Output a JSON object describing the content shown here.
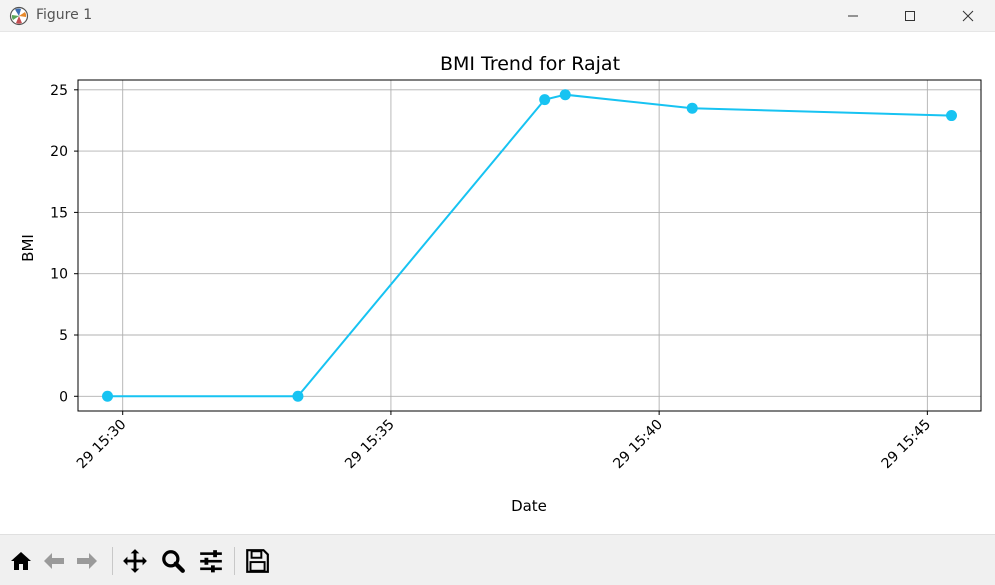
{
  "window": {
    "title": "Figure 1",
    "icons": {
      "app": "matplotlib-icon",
      "minimize": "minimize-icon",
      "maximize": "maximize-icon",
      "close": "close-icon"
    }
  },
  "toolbar": {
    "buttons": [
      "home-icon",
      "back-arrow-icon",
      "forward-arrow-icon",
      "pan-icon",
      "zoom-icon",
      "configure-subplots-icon",
      "save-icon"
    ]
  },
  "chart_data": {
    "type": "line",
    "title": "BMI Trend for Rajat",
    "xlabel": "Date",
    "ylabel": "BMI",
    "x": [
      "29 15:29:43",
      "29 15:33:16",
      "29 15:37:52",
      "29 15:38:15",
      "29 15:40:37",
      "29 15:45:27"
    ],
    "y": [
      0,
      0,
      24.2,
      24.6,
      23.5,
      22.9
    ],
    "x_tick_labels": [
      "29 15:30",
      "29 15:35",
      "29 15:40",
      "29 15:45"
    ],
    "y_ticks": [
      0,
      5,
      10,
      15,
      20,
      25
    ],
    "ylim": [
      -1.2,
      25.8
    ],
    "xlim": [
      "29 15:29:10",
      "29 15:46:00"
    ],
    "grid": true,
    "marker": "circle",
    "color": "#17c3f2"
  }
}
